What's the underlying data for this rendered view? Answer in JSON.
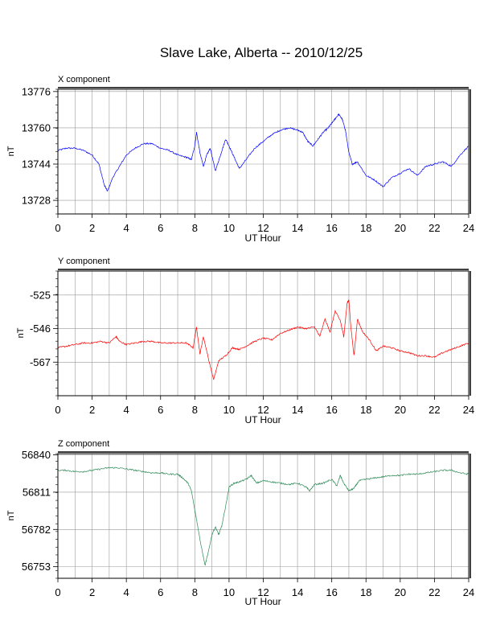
{
  "title": "Slave Lake, Alberta -- 2010/12/25",
  "chart_data": [
    {
      "type": "line",
      "panel_label": "X component",
      "xlabel": "UT Hour",
      "ylabel": "nT",
      "xlim": [
        0,
        24
      ],
      "ylim": [
        13722,
        13777
      ],
      "xticks": [
        "0",
        "2",
        "4",
        "6",
        "8",
        "10",
        "12",
        "14",
        "16",
        "18",
        "20",
        "22",
        "24"
      ],
      "yticks": [
        "13728",
        "13744",
        "13760",
        "13776"
      ],
      "grid": true,
      "color": "#0000ff",
      "series": [
        {
          "x": [
            0,
            0.5,
            1,
            1.5,
            2,
            2.4,
            2.7,
            2.9,
            3.2,
            3.6,
            4,
            4.5,
            5,
            5.5,
            6,
            6.5,
            7,
            7.5,
            7.8,
            8,
            8.1,
            8.3,
            8.5,
            8.7,
            8.9,
            9.2,
            9.5,
            9.8,
            10,
            10.3,
            10.6,
            11,
            11.5,
            12,
            12.5,
            13,
            13.5,
            14,
            14.3,
            14.6,
            14.9,
            15.2,
            15.5,
            15.8,
            16,
            16.2,
            16.4,
            16.6,
            16.8,
            17,
            17.2,
            17.5,
            18,
            18.5,
            19,
            19.5,
            20,
            20.5,
            21,
            21.5,
            22,
            22.5,
            23,
            23.5,
            24
          ],
          "values": [
            13750,
            13751,
            13751,
            13750,
            13748,
            13744,
            13735,
            13732,
            13738,
            13743,
            13748,
            13751,
            13753,
            13753,
            13751,
            13750,
            13748,
            13747,
            13746,
            13752,
            13758,
            13749,
            13743,
            13748,
            13751,
            13741,
            13748,
            13755,
            13752,
            13747,
            13742,
            13746,
            13751,
            13754,
            13757,
            13759,
            13760,
            13759,
            13758,
            13754,
            13752,
            13755,
            13758,
            13760,
            13762,
            13764,
            13766,
            13764,
            13759,
            13749,
            13744,
            13745,
            13739,
            13737,
            13734,
            13738,
            13740,
            13742,
            13739,
            13743,
            13744,
            13745,
            13743,
            13748,
            13752
          ]
        }
      ]
    },
    {
      "type": "line",
      "panel_label": "Y component",
      "xlabel": "UT Hour",
      "ylabel": "nT",
      "xlim": [
        0,
        24
      ],
      "ylim": [
        -588,
        -510
      ],
      "xticks": [
        "0",
        "2",
        "4",
        "6",
        "8",
        "10",
        "12",
        "14",
        "16",
        "18",
        "20",
        "22",
        "24"
      ],
      "yticks": [
        "-525",
        "-546",
        "-567"
      ],
      "grid": true,
      "color": "#ff0000",
      "series": [
        {
          "x": [
            0,
            0.5,
            1,
            1.5,
            2,
            2.5,
            3,
            3.4,
            3.6,
            4,
            4.5,
            5,
            5.5,
            6,
            6.5,
            7,
            7.5,
            7.9,
            8.1,
            8.3,
            8.5,
            8.8,
            9.1,
            9.4,
            9.8,
            10.2,
            10.6,
            11,
            11.5,
            12,
            12.5,
            13,
            13.5,
            14,
            14.5,
            15,
            15.3,
            15.6,
            15.9,
            16.2,
            16.5,
            16.7,
            16.9,
            17,
            17.1,
            17.3,
            17.5,
            17.8,
            18.2,
            18.6,
            19,
            19.5,
            20,
            20.5,
            21,
            21.5,
            22,
            22.5,
            23,
            23.5,
            24
          ],
          "values": [
            -558,
            -557,
            -556,
            -555,
            -555,
            -554,
            -555,
            -551,
            -554,
            -556,
            -555,
            -554,
            -554,
            -555,
            -555,
            -555,
            -555,
            -558,
            -545,
            -562,
            -551,
            -565,
            -578,
            -566,
            -563,
            -558,
            -559,
            -557,
            -554,
            -552,
            -553,
            -549,
            -547,
            -545,
            -546,
            -545,
            -551,
            -540,
            -548,
            -535,
            -541,
            -551,
            -530,
            -528,
            -543,
            -563,
            -540,
            -548,
            -553,
            -560,
            -557,
            -558,
            -560,
            -561,
            -563,
            -563,
            -564,
            -561,
            -559,
            -557,
            -555
          ]
        }
      ]
    },
    {
      "type": "line",
      "panel_label": "Z component",
      "xlabel": "UT Hour",
      "ylabel": "nT",
      "xlim": [
        0,
        24
      ],
      "ylim": [
        56744,
        56841
      ],
      "xticks": [
        "0",
        "2",
        "4",
        "6",
        "8",
        "10",
        "12",
        "14",
        "16",
        "18",
        "20",
        "22",
        "24"
      ],
      "yticks": [
        "56840",
        "56811",
        "56782",
        "56753"
      ],
      "grid": true,
      "color": "#2e8b57",
      "series": [
        {
          "x": [
            0,
            0.5,
            1,
            1.5,
            2,
            2.5,
            3,
            3.5,
            4,
            4.5,
            5,
            5.5,
            6,
            6.5,
            7,
            7.3,
            7.6,
            7.8,
            8,
            8.1,
            8.2,
            8.4,
            8.6,
            8.8,
            9,
            9.2,
            9.4,
            9.6,
            9.8,
            10,
            10.3,
            10.6,
            11,
            11.3,
            11.6,
            12,
            12.5,
            13,
            13.5,
            14,
            14.5,
            14.7,
            15,
            15.5,
            16,
            16.3,
            16.5,
            16.7,
            17,
            17.3,
            17.6,
            18,
            18.5,
            19,
            19.5,
            20,
            20.5,
            21,
            21.5,
            22,
            22.5,
            23,
            23.5,
            24
          ],
          "values": [
            56828,
            56828,
            56827,
            56827,
            56828,
            56829,
            56830,
            56830,
            56829,
            56828,
            56827,
            56826,
            56826,
            56825,
            56825,
            56822,
            56818,
            56812,
            56797,
            56790,
            56782,
            56767,
            56754,
            56765,
            56778,
            56784,
            56778,
            56786,
            56800,
            56815,
            56818,
            56819,
            56821,
            56824,
            56818,
            56820,
            56819,
            56818,
            56817,
            56818,
            56815,
            56812,
            56817,
            56818,
            56821,
            56816,
            56824,
            56818,
            56812,
            56814,
            56820,
            56821,
            56822,
            56823,
            56824,
            56824,
            56825,
            56825,
            56826,
            56827,
            56828,
            56828,
            56826,
            56825
          ]
        }
      ]
    }
  ]
}
